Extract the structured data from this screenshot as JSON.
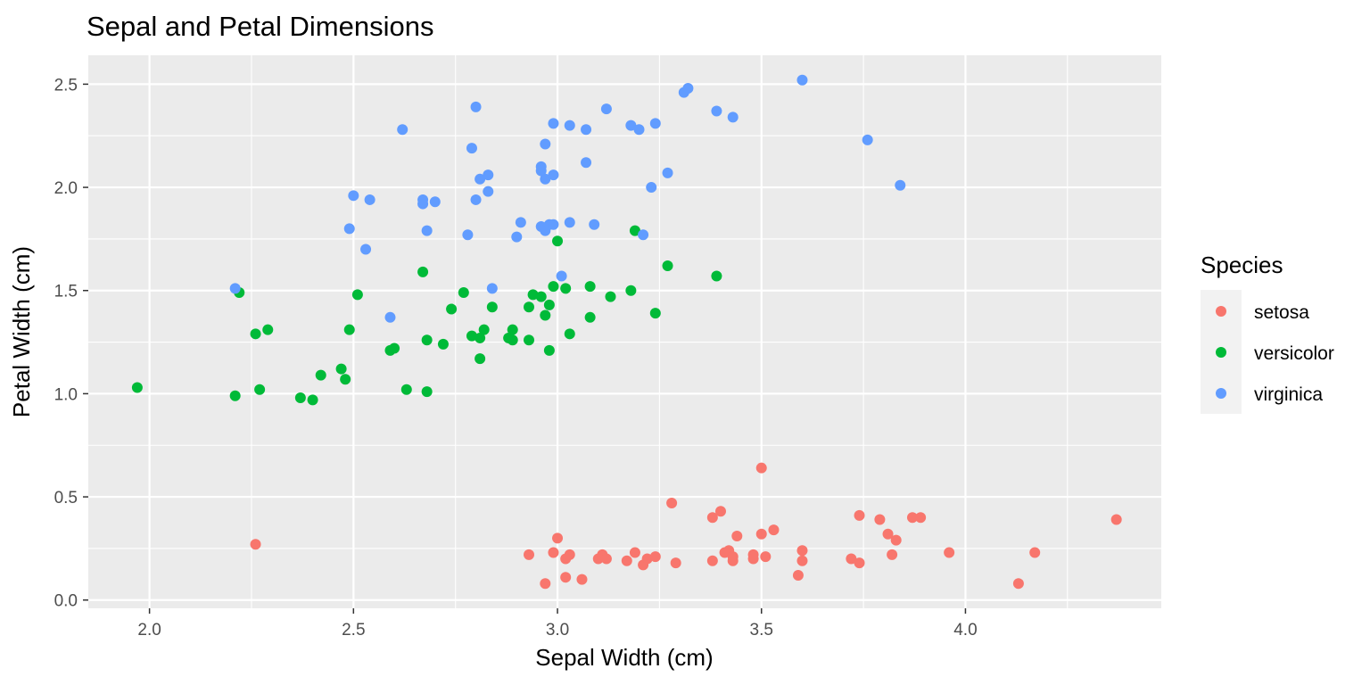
{
  "chart_data": {
    "type": "scatter",
    "title": "Sepal and Petal Dimensions",
    "xlabel": "Sepal Width (cm)",
    "ylabel": "Petal Width (cm)",
    "xlim": [
      1.85,
      4.48
    ],
    "ylim": [
      -0.04,
      2.64
    ],
    "x_ticks": [
      2.0,
      2.5,
      3.0,
      3.5,
      4.0
    ],
    "x_tick_labels": [
      "2.0",
      "2.5",
      "3.0",
      "3.5",
      "4.0"
    ],
    "y_ticks": [
      0.0,
      0.5,
      1.0,
      1.5,
      2.0,
      2.5
    ],
    "y_tick_labels": [
      "0.0",
      "0.5",
      "1.0",
      "1.5",
      "2.0",
      "2.5"
    ],
    "grid": true,
    "legend": {
      "title": "Species",
      "position": "right",
      "entries": [
        "setosa",
        "versicolor",
        "virginica"
      ]
    },
    "colors": {
      "setosa": "#F8766D",
      "versicolor": "#00BA38",
      "virginica": "#619CFF",
      "panel": "#EBEBEB",
      "grid": "#FFFFFF"
    },
    "series": [
      {
        "name": "setosa",
        "points": [
          [
            2.26,
            0.27
          ],
          [
            2.93,
            0.22
          ],
          [
            2.97,
            0.08
          ],
          [
            2.99,
            0.23
          ],
          [
            3.0,
            0.3
          ],
          [
            3.02,
            0.2
          ],
          [
            3.02,
            0.11
          ],
          [
            3.03,
            0.22
          ],
          [
            3.06,
            0.1
          ],
          [
            3.1,
            0.2
          ],
          [
            3.11,
            0.22
          ],
          [
            3.12,
            0.2
          ],
          [
            3.17,
            0.19
          ],
          [
            3.19,
            0.23
          ],
          [
            3.21,
            0.17
          ],
          [
            3.22,
            0.2
          ],
          [
            3.24,
            0.21
          ],
          [
            3.28,
            0.47
          ],
          [
            3.29,
            0.18
          ],
          [
            3.38,
            0.19
          ],
          [
            3.38,
            0.4
          ],
          [
            3.4,
            0.43
          ],
          [
            3.41,
            0.23
          ],
          [
            3.42,
            0.24
          ],
          [
            3.43,
            0.19
          ],
          [
            3.43,
            0.21
          ],
          [
            3.44,
            0.31
          ],
          [
            3.48,
            0.22
          ],
          [
            3.48,
            0.2
          ],
          [
            3.5,
            0.64
          ],
          [
            3.5,
            0.32
          ],
          [
            3.51,
            0.21
          ],
          [
            3.53,
            0.34
          ],
          [
            3.59,
            0.12
          ],
          [
            3.6,
            0.24
          ],
          [
            3.6,
            0.19
          ],
          [
            3.72,
            0.2
          ],
          [
            3.74,
            0.41
          ],
          [
            3.74,
            0.18
          ],
          [
            3.79,
            0.39
          ],
          [
            3.81,
            0.32
          ],
          [
            3.82,
            0.22
          ],
          [
            3.83,
            0.29
          ],
          [
            3.87,
            0.4
          ],
          [
            3.89,
            0.4
          ],
          [
            3.96,
            0.23
          ],
          [
            4.13,
            0.08
          ],
          [
            4.17,
            0.23
          ],
          [
            4.37,
            0.39
          ]
        ]
      },
      {
        "name": "versicolor",
        "points": [
          [
            1.97,
            1.03
          ],
          [
            2.21,
            0.99
          ],
          [
            2.22,
            1.49
          ],
          [
            2.26,
            1.29
          ],
          [
            2.27,
            1.02
          ],
          [
            2.29,
            1.31
          ],
          [
            2.37,
            0.98
          ],
          [
            2.4,
            0.97
          ],
          [
            2.42,
            1.09
          ],
          [
            2.47,
            1.12
          ],
          [
            2.48,
            1.07
          ],
          [
            2.49,
            1.31
          ],
          [
            2.51,
            1.48
          ],
          [
            2.59,
            1.21
          ],
          [
            2.6,
            1.22
          ],
          [
            2.63,
            1.02
          ],
          [
            2.67,
            1.59
          ],
          [
            2.68,
            1.26
          ],
          [
            2.68,
            1.01
          ],
          [
            2.72,
            1.24
          ],
          [
            2.74,
            1.41
          ],
          [
            2.77,
            1.49
          ],
          [
            2.79,
            1.28
          ],
          [
            2.81,
            1.17
          ],
          [
            2.81,
            1.27
          ],
          [
            2.82,
            1.31
          ],
          [
            2.84,
            1.42
          ],
          [
            2.88,
            1.27
          ],
          [
            2.89,
            1.26
          ],
          [
            2.89,
            1.31
          ],
          [
            2.93,
            1.26
          ],
          [
            2.93,
            1.42
          ],
          [
            2.94,
            1.48
          ],
          [
            2.96,
            1.47
          ],
          [
            2.97,
            1.38
          ],
          [
            2.98,
            1.21
          ],
          [
            2.98,
            1.43
          ],
          [
            2.99,
            1.52
          ],
          [
            3.0,
            1.74
          ],
          [
            3.02,
            1.51
          ],
          [
            3.03,
            1.29
          ],
          [
            3.08,
            1.52
          ],
          [
            3.08,
            1.37
          ],
          [
            3.13,
            1.47
          ],
          [
            3.18,
            1.5
          ],
          [
            3.19,
            1.79
          ],
          [
            3.24,
            1.39
          ],
          [
            3.27,
            1.62
          ],
          [
            3.39,
            1.57
          ]
        ]
      },
      {
        "name": "virginica",
        "points": [
          [
            2.21,
            1.51
          ],
          [
            2.49,
            1.8
          ],
          [
            2.5,
            1.96
          ],
          [
            2.53,
            1.7
          ],
          [
            2.54,
            1.94
          ],
          [
            2.59,
            1.37
          ],
          [
            2.62,
            2.28
          ],
          [
            2.67,
            1.92
          ],
          [
            2.67,
            1.94
          ],
          [
            2.68,
            1.79
          ],
          [
            2.7,
            1.93
          ],
          [
            2.78,
            1.77
          ],
          [
            2.79,
            2.19
          ],
          [
            2.8,
            2.39
          ],
          [
            2.8,
            1.94
          ],
          [
            2.81,
            2.04
          ],
          [
            2.83,
            1.98
          ],
          [
            2.83,
            2.06
          ],
          [
            2.84,
            1.51
          ],
          [
            2.9,
            1.76
          ],
          [
            2.91,
            1.83
          ],
          [
            2.96,
            2.1
          ],
          [
            2.96,
            2.08
          ],
          [
            2.96,
            1.81
          ],
          [
            2.97,
            2.04
          ],
          [
            2.97,
            2.21
          ],
          [
            2.97,
            1.79
          ],
          [
            2.98,
            1.82
          ],
          [
            2.99,
            1.82
          ],
          [
            2.99,
            2.06
          ],
          [
            2.99,
            2.31
          ],
          [
            3.01,
            1.57
          ],
          [
            3.03,
            2.3
          ],
          [
            3.03,
            1.83
          ],
          [
            3.07,
            2.28
          ],
          [
            3.07,
            2.12
          ],
          [
            3.09,
            1.82
          ],
          [
            3.12,
            2.38
          ],
          [
            3.18,
            2.3
          ],
          [
            3.2,
            2.28
          ],
          [
            3.21,
            1.77
          ],
          [
            3.23,
            2.0
          ],
          [
            3.24,
            2.31
          ],
          [
            3.27,
            2.07
          ],
          [
            3.31,
            2.46
          ],
          [
            3.32,
            2.48
          ],
          [
            3.39,
            2.37
          ],
          [
            3.43,
            2.34
          ],
          [
            3.6,
            2.52
          ],
          [
            3.76,
            2.23
          ],
          [
            3.84,
            2.01
          ]
        ]
      }
    ]
  }
}
